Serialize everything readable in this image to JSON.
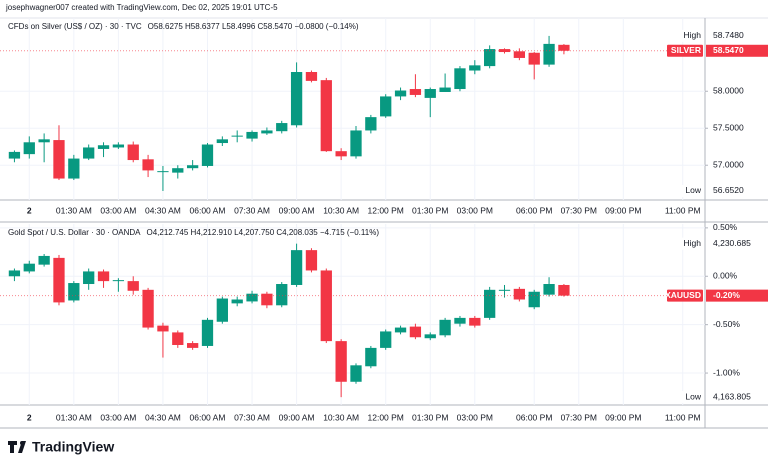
{
  "header": {
    "text": "josephwagner007 created with TradingView.com, Dec 02, 2025 19:01 UTC-5"
  },
  "footer": {
    "logo": "TradingView"
  },
  "chart_data": [
    {
      "type": "candlestick",
      "title": "CFDs on Silver (US$ / OZ) · 30 · TVC",
      "ohlc_text": "O58.6275 H58.6377 L58.4996 C58.5470 −0.0800 (−0.14%)",
      "categories": [
        null,
        "2",
        null,
        null,
        "01:30 AM",
        null,
        null,
        "03:00 AM",
        null,
        null,
        "04:30 AM",
        null,
        null,
        "06:00 AM",
        null,
        null,
        "07:30 AM",
        null,
        null,
        "09:00 AM",
        null,
        null,
        "10:30 AM",
        null,
        null,
        "12:00 PM",
        null,
        null,
        "01:30 PM",
        null,
        null,
        "03:00 PM",
        null,
        null,
        null,
        "06:00 PM",
        null,
        null,
        "07:30 PM",
        null,
        null,
        "09:00 PM",
        null,
        null,
        null,
        "11:00 PM",
        null
      ],
      "open": [
        57.09,
        57.15,
        57.31,
        57.34,
        56.82,
        57.09,
        57.22,
        57.24,
        57.28,
        57.08,
        56.92,
        56.9,
        56.96,
        56.99,
        57.3,
        57.39,
        57.36,
        57.43,
        57.46,
        57.54,
        58.26,
        58.15,
        57.19,
        57.12,
        57.47,
        57.66,
        57.93,
        58.03,
        57.91,
        57.99,
        58.03,
        58.28,
        58.34,
        58.57,
        58.54,
        58.52,
        58.36,
        58.6275,
        null,
        null,
        null,
        null,
        null,
        null,
        null,
        null,
        null
      ],
      "high": [
        57.2,
        57.39,
        57.43,
        57.54,
        57.14,
        57.28,
        57.31,
        57.31,
        57.32,
        57.14,
        56.99,
        57.0,
        57.07,
        57.3,
        57.39,
        57.47,
        57.47,
        57.51,
        57.6,
        58.39,
        58.28,
        58.18,
        57.23,
        57.53,
        57.68,
        57.96,
        58.05,
        58.23,
        58.05,
        58.24,
        58.34,
        58.42,
        58.62,
        58.58,
        58.58,
        58.53,
        58.748,
        58.6377,
        null,
        null,
        null,
        null,
        null,
        null,
        null,
        null,
        null
      ],
      "low": [
        57.04,
        57.09,
        57.04,
        56.8,
        56.8,
        57.07,
        57.11,
        57.22,
        57.04,
        56.84,
        56.652,
        56.82,
        56.93,
        56.97,
        57.26,
        57.31,
        57.32,
        57.41,
        57.43,
        57.51,
        58.12,
        57.18,
        57.07,
        57.09,
        57.43,
        57.64,
        57.88,
        57.92,
        57.65,
        57.99,
        58.0,
        58.23,
        58.31,
        58.51,
        58.42,
        58.16,
        58.33,
        58.4996,
        null,
        null,
        null,
        null,
        null,
        null,
        null,
        null,
        null
      ],
      "close": [
        57.18,
        57.31,
        57.35,
        56.82,
        57.09,
        57.24,
        57.27,
        57.28,
        57.07,
        56.93,
        56.92,
        56.96,
        57.0,
        57.28,
        57.35,
        57.4,
        57.45,
        57.47,
        57.57,
        58.26,
        58.14,
        57.19,
        57.12,
        57.47,
        57.65,
        57.93,
        58.01,
        57.95,
        58.03,
        58.05,
        58.31,
        58.35,
        58.57,
        58.53,
        58.45,
        58.36,
        58.64,
        58.547,
        null,
        null,
        null,
        null,
        null,
        null,
        null,
        null,
        null
      ],
      "up_color": "#089981",
      "down_color": "#f23645",
      "ylim": [
        56.53,
        58.99
      ],
      "yticks": [
        {
          "value": 57,
          "label": "57.0000"
        },
        {
          "value": 57.5,
          "label": "57.5000"
        },
        {
          "value": 58,
          "label": "58.0000"
        }
      ],
      "grid": true,
      "high_name": "High",
      "high_label": "58.7480",
      "low_name": "Low",
      "low_label": "56.6520",
      "symbol": "SILVER",
      "last_label": "58.5470"
    },
    {
      "type": "candlestick",
      "title": "Gold Spot / U.S. Dollar · 30 · OANDA",
      "ohlc_text": "O4,212.745 H4,212.910 L4,207.750 C4,208.035 −4.715 (−0.11%)",
      "categories": [
        null,
        "2",
        null,
        null,
        "01:30 AM",
        null,
        null,
        "03:00 AM",
        null,
        null,
        "04:30 AM",
        null,
        null,
        "06:00 AM",
        null,
        null,
        "07:30 AM",
        null,
        null,
        "09:00 AM",
        null,
        null,
        "10:30 AM",
        null,
        null,
        "12:00 PM",
        null,
        null,
        "01:30 PM",
        null,
        null,
        "03:00 PM",
        null,
        null,
        null,
        "06:00 PM",
        null,
        null,
        "07:30 PM",
        null,
        null,
        "09:00 PM",
        null,
        null,
        null,
        "11:00 PM",
        null
      ],
      "open": [
        0.0,
        0.05,
        0.12,
        0.19,
        -0.25,
        -0.08,
        0.05,
        -0.04,
        -0.05,
        -0.14,
        -0.51,
        -0.58,
        -0.69,
        -0.72,
        -0.47,
        -0.28,
        -0.26,
        -0.18,
        -0.3,
        -0.09,
        0.27,
        0.06,
        -0.67,
        -1.09,
        -0.93,
        -0.74,
        -0.58,
        -0.52,
        -0.64,
        -0.61,
        -0.49,
        -0.43,
        -0.43,
        -0.14,
        -0.13,
        -0.32,
        -0.19,
        -0.09,
        null,
        null,
        null,
        null,
        null,
        null,
        null,
        null,
        null
      ],
      "high": [
        0.08,
        0.16,
        0.23,
        0.22,
        -0.05,
        0.08,
        0.07,
        -0.02,
        0.0,
        -0.12,
        -0.48,
        -0.56,
        -0.67,
        -0.43,
        -0.21,
        -0.21,
        -0.15,
        -0.16,
        -0.06,
        0.337,
        0.29,
        0.08,
        -0.65,
        -0.9,
        -0.72,
        -0.55,
        -0.51,
        -0.49,
        -0.58,
        -0.43,
        -0.41,
        -0.41,
        -0.11,
        -0.09,
        -0.11,
        -0.14,
        -0.01,
        -0.08,
        null,
        null,
        null,
        null,
        null,
        null,
        null,
        null,
        null
      ],
      "low": [
        -0.05,
        0.03,
        0.1,
        -0.3,
        -0.27,
        -0.14,
        -0.12,
        -0.16,
        -0.19,
        -0.55,
        -0.84,
        -0.74,
        -0.76,
        -0.74,
        -0.49,
        -0.31,
        -0.28,
        -0.33,
        -0.32,
        -0.11,
        0.04,
        -0.69,
        -1.249,
        -1.11,
        -0.95,
        -0.76,
        -0.6,
        -0.65,
        -0.66,
        -0.63,
        -0.52,
        -0.53,
        -0.45,
        -0.22,
        -0.26,
        -0.34,
        -0.21,
        -0.21,
        null,
        null,
        null,
        null,
        null,
        null,
        null,
        null,
        null
      ],
      "close": [
        0.06,
        0.13,
        0.21,
        -0.27,
        -0.07,
        0.05,
        -0.05,
        -0.04,
        -0.15,
        -0.53,
        -0.57,
        -0.71,
        -0.74,
        -0.45,
        -0.23,
        -0.24,
        -0.18,
        -0.3,
        -0.08,
        0.27,
        0.06,
        -0.67,
        -1.09,
        -0.92,
        -0.74,
        -0.57,
        -0.53,
        -0.63,
        -0.6,
        -0.45,
        -0.43,
        -0.51,
        -0.14,
        -0.14,
        -0.24,
        -0.16,
        -0.08,
        -0.2,
        null,
        null,
        null,
        null,
        null,
        null,
        null,
        null,
        null
      ],
      "up_color": "#089981",
      "down_color": "#f23645",
      "ylim": [
        -1.33,
        0.54
      ],
      "yticks": [
        {
          "value": 0.5,
          "label": "0.50%"
        },
        {
          "value": 0,
          "label": "0.00%"
        },
        {
          "value": -0.5,
          "label": "-0.50%"
        },
        {
          "value": -1,
          "label": "-1.00%"
        }
      ],
      "grid": true,
      "high_name": "High",
      "high_label": "4,230.685",
      "low_name": "Low",
      "low_label": "4,163.805",
      "symbol": "XAUUSD",
      "last_label": "-0.20%"
    }
  ]
}
